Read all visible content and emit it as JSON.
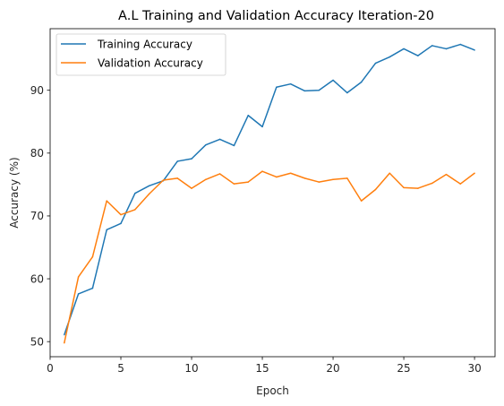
{
  "chart_data": {
    "type": "line",
    "title": "A.L Training and Validation Accuracy Iteration-20",
    "xlabel": "Epoch",
    "ylabel": "Accuracy (%)",
    "xlim": [
      0,
      31.45
    ],
    "ylim": [
      47.6,
      99.8
    ],
    "xticks": [
      0,
      5,
      10,
      15,
      20,
      25,
      30
    ],
    "yticks": [
      50,
      60,
      70,
      80,
      90
    ],
    "legend_position": "upper-left",
    "grid": false,
    "x": [
      1,
      2,
      3,
      4,
      5,
      6,
      7,
      8,
      9,
      10,
      11,
      12,
      13,
      14,
      15,
      16,
      17,
      18,
      19,
      20,
      21,
      22,
      23,
      24,
      25,
      26,
      27,
      28,
      29,
      30
    ],
    "series": [
      {
        "name": "Training Accuracy",
        "color": "#1f77b4",
        "values": [
          51.1,
          57.6,
          58.5,
          67.8,
          68.8,
          73.6,
          74.8,
          75.6,
          78.7,
          79.1,
          81.3,
          82.2,
          81.2,
          86.0,
          84.2,
          90.5,
          91.0,
          89.9,
          90.0,
          91.6,
          89.6,
          91.3,
          94.3,
          95.3,
          96.6,
          95.5,
          97.1,
          96.6,
          97.3,
          96.4
        ]
      },
      {
        "name": "Validation Accuracy",
        "color": "#ff7f0e",
        "values": [
          49.8,
          60.3,
          63.5,
          72.4,
          70.2,
          71.0,
          73.5,
          75.7,
          76.0,
          74.4,
          75.8,
          76.7,
          75.1,
          75.4,
          77.1,
          76.2,
          76.8,
          76.0,
          75.4,
          75.8,
          76.0,
          72.4,
          74.2,
          76.8,
          74.5,
          74.4,
          75.2,
          76.6,
          75.1,
          76.8
        ]
      }
    ]
  }
}
